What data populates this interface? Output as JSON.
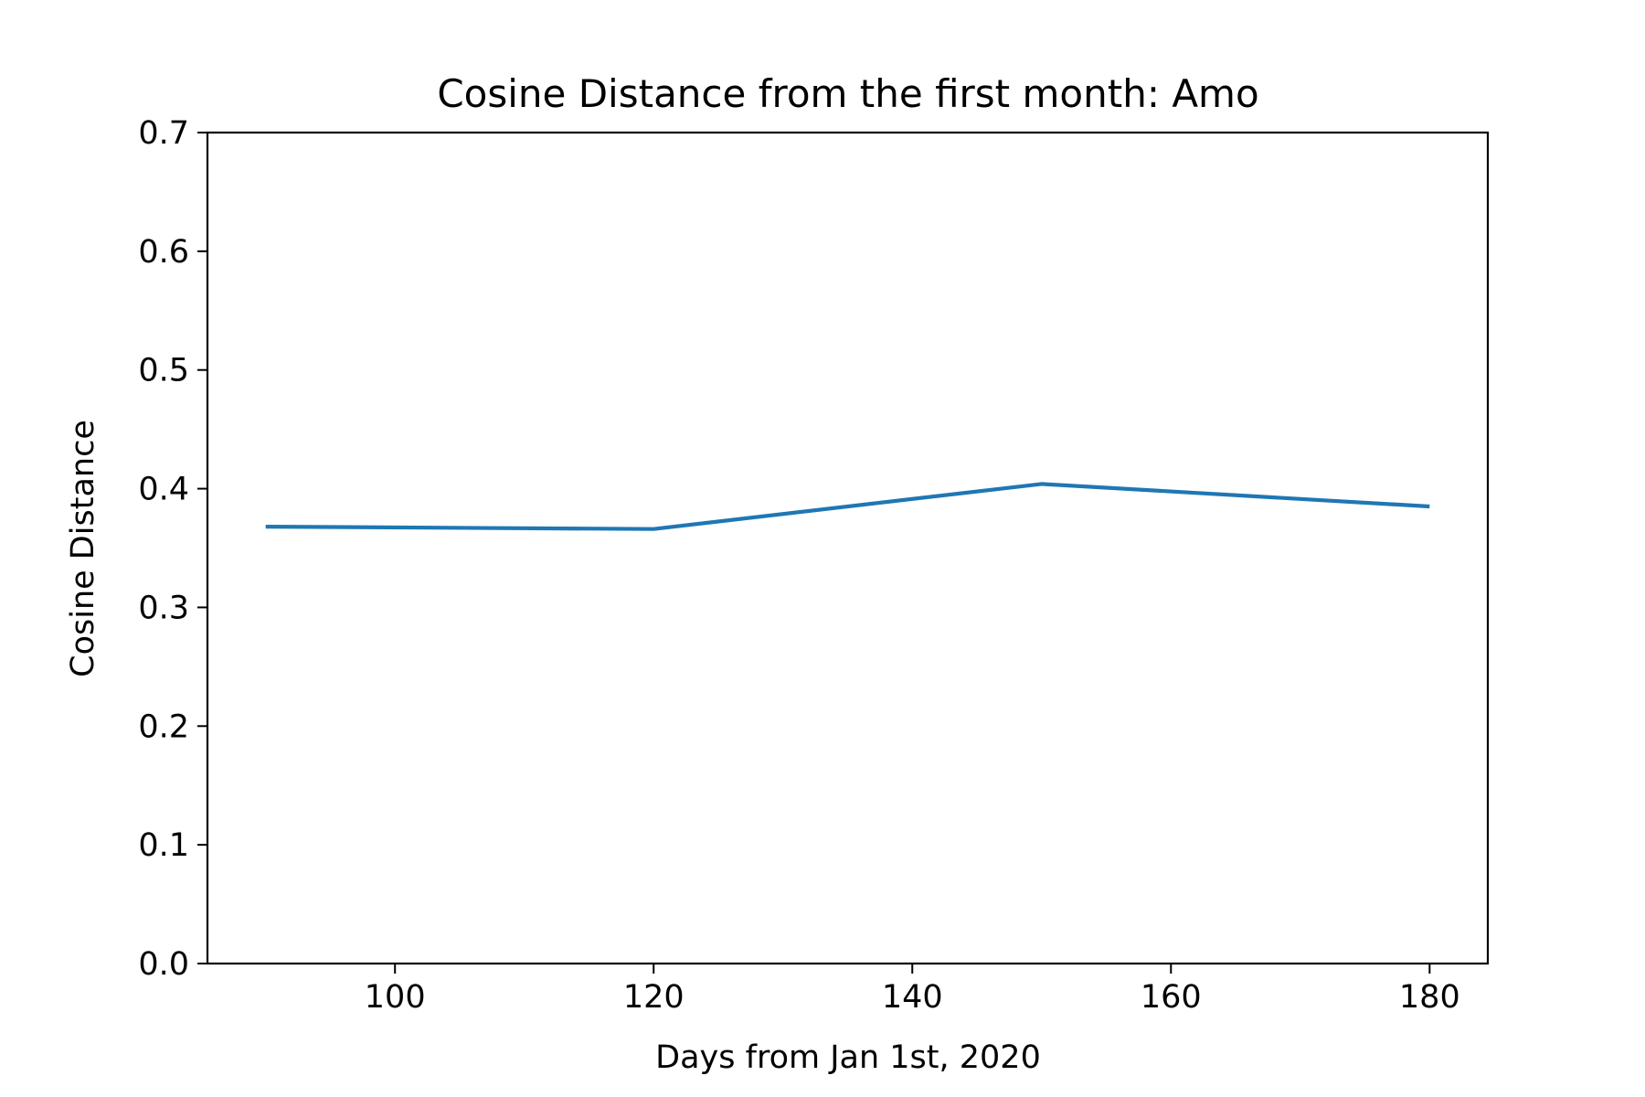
{
  "chart_data": {
    "type": "line",
    "title": "Cosine Distance from the first month: Amo",
    "xlabel": "Days from Jan 1st, 2020",
    "ylabel": "Cosine Distance",
    "xlim": [
      85.5,
      184.5
    ],
    "ylim": [
      0.0,
      0.7
    ],
    "xticks": [
      100,
      120,
      140,
      160,
      180
    ],
    "xtick_labels": [
      "100",
      "120",
      "140",
      "160",
      "180"
    ],
    "yticks": [
      0.0,
      0.1,
      0.2,
      0.3,
      0.4,
      0.5,
      0.6,
      0.7
    ],
    "ytick_labels": [
      "0.0",
      "0.1",
      "0.2",
      "0.3",
      "0.4",
      "0.5",
      "0.6",
      "0.7"
    ],
    "grid": false,
    "series": [
      {
        "color": "#1f77b4",
        "x": [
          90,
          120,
          150,
          180
        ],
        "y": [
          0.368,
          0.366,
          0.404,
          0.385
        ]
      }
    ]
  }
}
